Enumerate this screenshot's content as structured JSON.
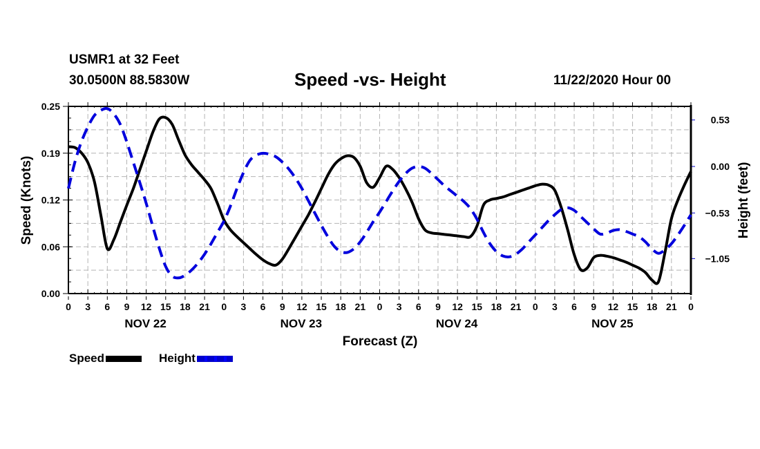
{
  "header": {
    "station": "USMR1 at 32 Feet",
    "coords": "30.0500N 88.5830W",
    "title": "Speed -vs- Height",
    "datetime": "11/22/2020 Hour 00"
  },
  "legend": {
    "speed_label": "Speed",
    "height_label": "Height"
  },
  "colors": {
    "speed": "#000000",
    "height": "#0000dd",
    "grid": "#b4b4b4"
  },
  "chart_data": {
    "type": "line",
    "title": "Speed -vs- Height",
    "xlabel": "Forecast (Z)",
    "ylabel": "Speed (Knots)",
    "y2label": "Height (feet)",
    "grid": true,
    "legend_position": "bottom-left",
    "xlim": [
      0,
      96
    ],
    "ylim": [
      0.0,
      0.25
    ],
    "y2lim": [
      -1.45,
      0.68
    ],
    "x_tick_labels": [
      "0",
      "3",
      "6",
      "9",
      "12",
      "15",
      "18",
      "21",
      "0",
      "3",
      "6",
      "9",
      "12",
      "15",
      "18",
      "21",
      "0",
      "3",
      "6",
      "9",
      "12",
      "15",
      "18",
      "21",
      "0",
      "3",
      "6",
      "9",
      "12",
      "15",
      "18",
      "21",
      "0"
    ],
    "day_labels": [
      "NOV 22",
      "NOV 23",
      "NOV 24",
      "NOV 25"
    ],
    "y_ticks": [
      "0.00",
      "0.06",
      "0.12",
      "0.19",
      "0.25"
    ],
    "y2_ticks": [
      "0.53",
      "0.00",
      "-0.53",
      "-1.05"
    ],
    "x": [
      0,
      1,
      2,
      3,
      4,
      5,
      6,
      7,
      8,
      9,
      10,
      11,
      12,
      13,
      14,
      15,
      16,
      17,
      18,
      19,
      20,
      21,
      22,
      23,
      24,
      25,
      26,
      27,
      28,
      29,
      30,
      31,
      32,
      33,
      34,
      35,
      36,
      37,
      38,
      39,
      40,
      41,
      42,
      43,
      44,
      45,
      46,
      47,
      48,
      49,
      50,
      51,
      52,
      53,
      54,
      55,
      56,
      57,
      58,
      59,
      60,
      61,
      62,
      63,
      64,
      65,
      66,
      67,
      68,
      69,
      70,
      71,
      72,
      73,
      74,
      75,
      76,
      77,
      78,
      79,
      80,
      81,
      82,
      83,
      84,
      85,
      86,
      87,
      88,
      89,
      90,
      91,
      92,
      93,
      94,
      95,
      96
    ],
    "series": [
      {
        "name": "Speed",
        "axis": "left",
        "units": "Knots",
        "style": "solid",
        "values": [
          0.196,
          0.195,
          0.188,
          0.175,
          0.15,
          0.105,
          0.06,
          0.072,
          0.095,
          0.118,
          0.14,
          0.165,
          0.19,
          0.215,
          0.233,
          0.235,
          0.226,
          0.205,
          0.185,
          0.172,
          0.162,
          0.152,
          0.14,
          0.12,
          0.098,
          0.085,
          0.076,
          0.068,
          0.06,
          0.052,
          0.045,
          0.04,
          0.038,
          0.046,
          0.06,
          0.075,
          0.09,
          0.105,
          0.122,
          0.14,
          0.158,
          0.172,
          0.18,
          0.184,
          0.182,
          0.17,
          0.148,
          0.142,
          0.155,
          0.17,
          0.166,
          0.155,
          0.14,
          0.122,
          0.1,
          0.085,
          0.081,
          0.08,
          0.079,
          0.078,
          0.077,
          0.076,
          0.076,
          0.09,
          0.118,
          0.125,
          0.127,
          0.129,
          0.132,
          0.135,
          0.138,
          0.141,
          0.144,
          0.146,
          0.145,
          0.138,
          0.115,
          0.085,
          0.052,
          0.032,
          0.034,
          0.048,
          0.051,
          0.05,
          0.048,
          0.045,
          0.042,
          0.038,
          0.034,
          0.028,
          0.018,
          0.016,
          0.055,
          0.1,
          0.125,
          0.145,
          0.163
        ]
      },
      {
        "name": "Height",
        "axis": "right",
        "units": "feet",
        "style": "dashed",
        "values": [
          -0.25,
          0.05,
          0.28,
          0.45,
          0.58,
          0.64,
          0.66,
          0.6,
          0.48,
          0.28,
          0.05,
          -0.18,
          -0.42,
          -0.68,
          -0.93,
          -1.14,
          -1.25,
          -1.27,
          -1.24,
          -1.18,
          -1.1,
          -1.0,
          -0.88,
          -0.75,
          -0.62,
          -0.45,
          -0.25,
          -0.07,
          0.07,
          0.13,
          0.15,
          0.14,
          0.11,
          0.05,
          -0.03,
          -0.13,
          -0.25,
          -0.39,
          -0.53,
          -0.67,
          -0.8,
          -0.91,
          -0.97,
          -0.98,
          -0.94,
          -0.86,
          -0.75,
          -0.63,
          -0.52,
          -0.4,
          -0.28,
          -0.17,
          -0.08,
          -0.02,
          0.0,
          -0.02,
          -0.08,
          -0.15,
          -0.22,
          -0.28,
          -0.34,
          -0.4,
          -0.48,
          -0.6,
          -0.75,
          -0.88,
          -0.97,
          -1.02,
          -1.03,
          -1.0,
          -0.94,
          -0.86,
          -0.78,
          -0.7,
          -0.62,
          -0.55,
          -0.49,
          -0.47,
          -0.5,
          -0.57,
          -0.64,
          -0.71,
          -0.77,
          -0.76,
          -0.73,
          -0.72,
          -0.74,
          -0.77,
          -0.8,
          -0.86,
          -0.94,
          -0.99,
          -0.95,
          -0.88,
          -0.78,
          -0.67,
          -0.55
        ]
      }
    ]
  }
}
